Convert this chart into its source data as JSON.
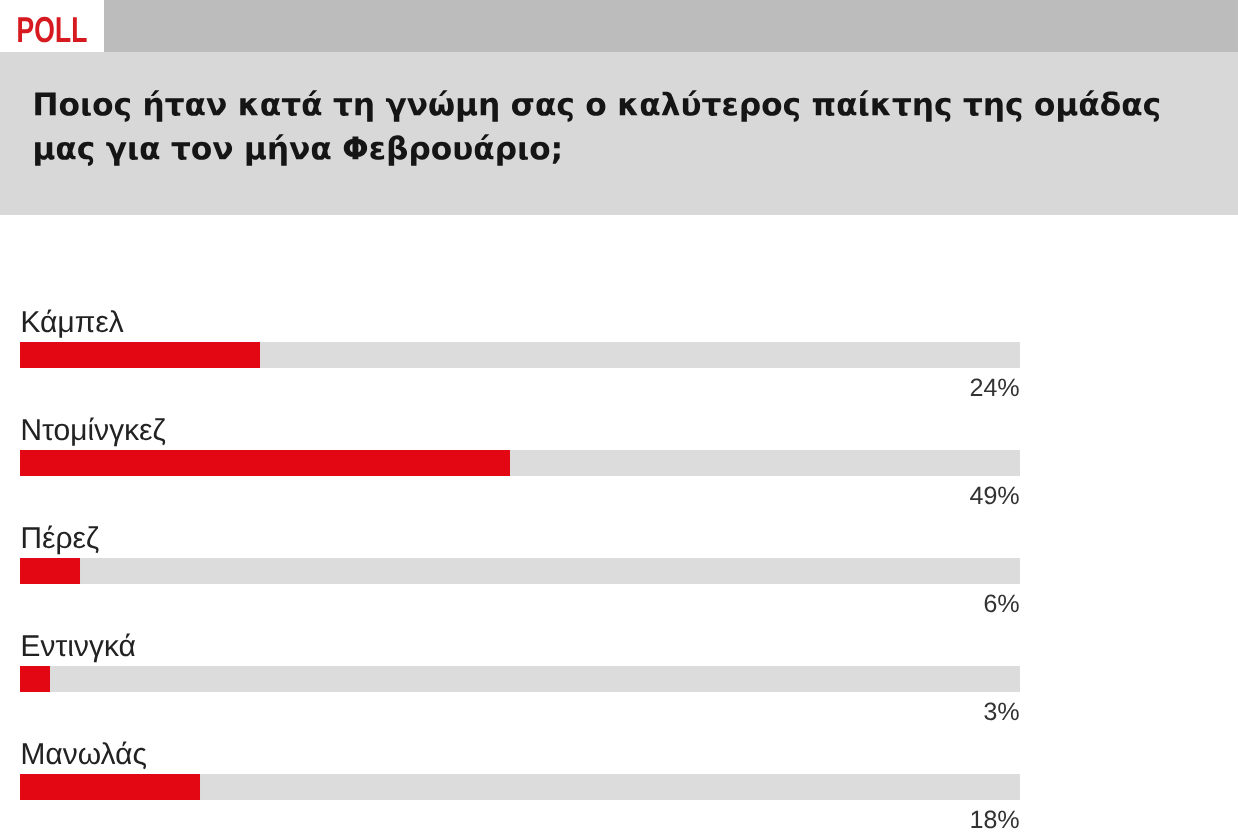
{
  "chart_data": {
    "type": "bar",
    "orientation": "horizontal",
    "title": "Ποιος ήταν κατά τη γνώμη σας ο καλύτερος παίκτης της ομάδας μας για τον μήνα Φεβρουάριο;",
    "annotations": [
      "POLL"
    ],
    "categories": [
      "Κάμπελ",
      "Ντομίνγκεζ",
      "Πέρεζ",
      "Εντινγκά",
      "Μανωλάς"
    ],
    "values": [
      24,
      49,
      6,
      3,
      18
    ],
    "value_labels": [
      "24%",
      "49%",
      "6%",
      "3%",
      "18%"
    ],
    "color": "#e30613",
    "xlim": [
      0,
      100
    ],
    "tick_labels": "y"
  }
}
